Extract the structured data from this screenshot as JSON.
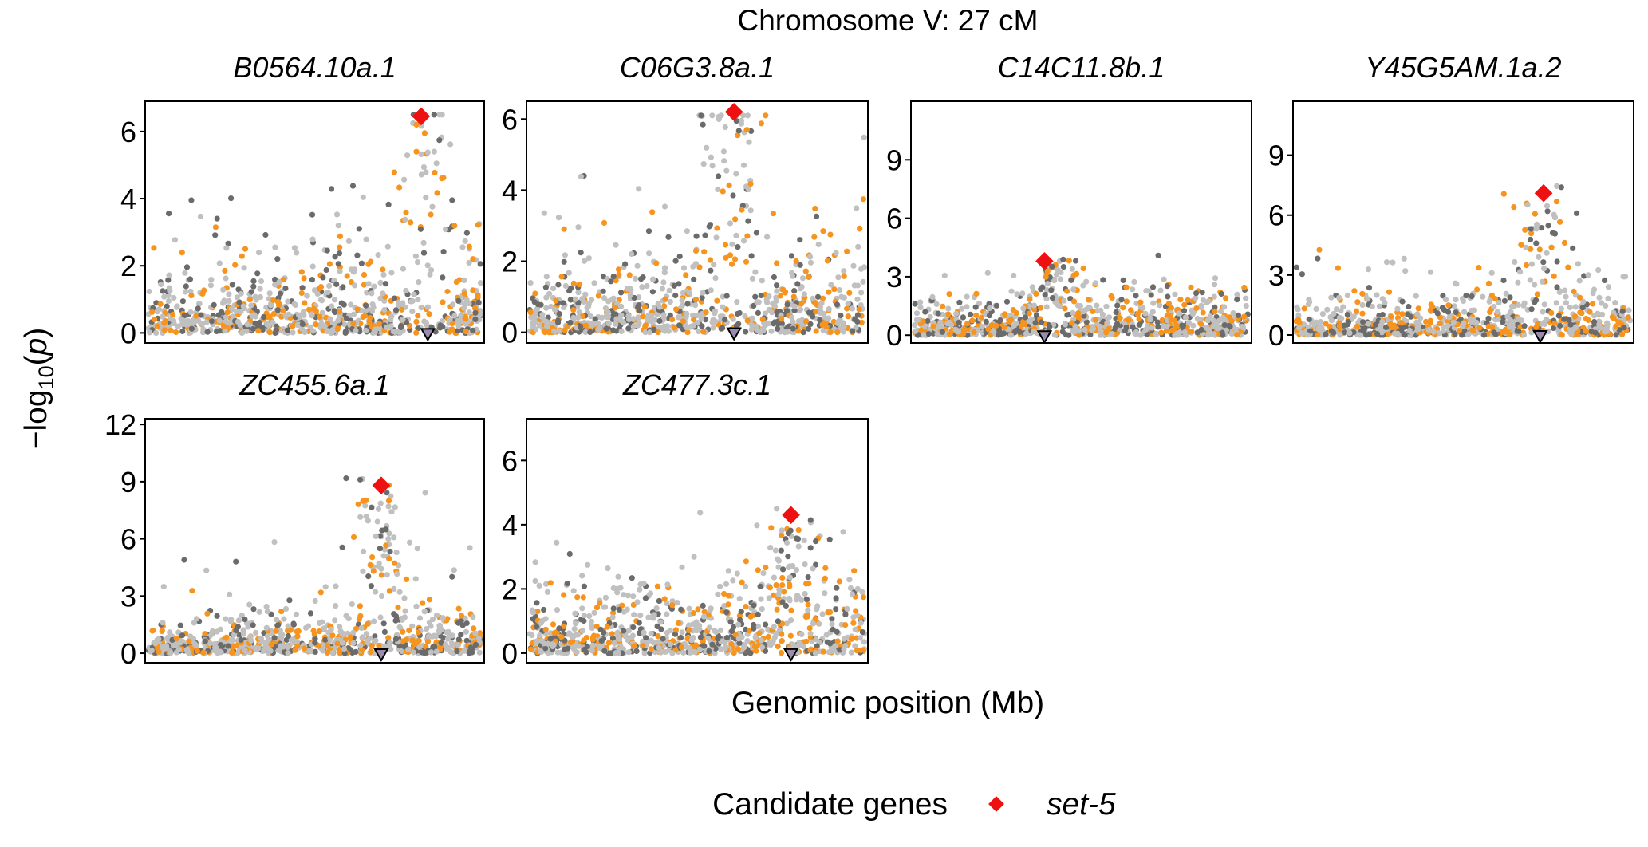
{
  "figure": {
    "title": "Chromosome V: 27 cM",
    "xlabel": "Genomic position (Mb)",
    "ylabel_prefix": "−log",
    "ylabel_sub": "10",
    "ylabel_open": "(",
    "ylabel_var": "p",
    "ylabel_close": ")",
    "legend_title": "Candidate genes",
    "legend_label": "set-5"
  },
  "colors": {
    "background_points": "#c0c0c0",
    "dark_points": "#6b6b6b",
    "highlight_points": "#f7941d",
    "candidate": "#ee1111",
    "marker_fill": "#9a8cae",
    "axis": "#000000"
  },
  "chart_data": [
    {
      "type": "scatter",
      "title": "B0564.10a.1",
      "ylim": [
        -0.3,
        6.9
      ],
      "yticks": [
        "0",
        "2",
        "4",
        "6"
      ],
      "ytick_values": [
        0,
        2,
        4,
        6
      ],
      "peak_position": 0.84,
      "marker_position": 0.84,
      "candidate": {
        "name": "set-5",
        "x": 0.82,
        "y": 6.45
      },
      "seed": 11
    },
    {
      "type": "scatter",
      "title": "C06G3.8a.1",
      "ylim": [
        -0.3,
        6.5
      ],
      "yticks": [
        "0",
        "2",
        "4",
        "6"
      ],
      "ytick_values": [
        0,
        2,
        4,
        6
      ],
      "peak_position": 0.6,
      "marker_position": 0.61,
      "candidate": {
        "name": "set-5",
        "x": 0.61,
        "y": 6.2
      },
      "seed": 23
    },
    {
      "type": "scatter",
      "title": "C14C11.8b.1",
      "ylim": [
        -0.4,
        12.0
      ],
      "yticks": [
        "0",
        "3",
        "6",
        "9"
      ],
      "ytick_values": [
        0,
        3,
        6,
        9
      ],
      "peak_position": 0.42,
      "marker_position": 0.39,
      "candidate": {
        "name": "set-5",
        "x": 0.39,
        "y": 3.8
      },
      "seed": 37
    },
    {
      "type": "scatter",
      "title": "Y45G5AM.1a.2",
      "ylim": [
        -0.4,
        11.7
      ],
      "yticks": [
        "0",
        "3",
        "6",
        "9"
      ],
      "ytick_values": [
        0,
        3,
        6,
        9
      ],
      "peak_position": 0.73,
      "marker_position": 0.73,
      "candidate": {
        "name": "set-5",
        "x": 0.74,
        "y": 7.1
      },
      "seed": 41
    },
    {
      "type": "scatter",
      "title": "ZC455.6a.1",
      "ylim": [
        -0.5,
        12.3
      ],
      "yticks": [
        "0",
        "3",
        "6",
        "9",
        "12"
      ],
      "ytick_values": [
        0,
        3,
        6,
        9,
        12
      ],
      "peak_position": 0.7,
      "marker_position": 0.7,
      "candidate": {
        "name": "set-5",
        "x": 0.7,
        "y": 8.8
      },
      "seed": 53
    },
    {
      "type": "scatter",
      "title": "ZC477.3c.1",
      "ylim": [
        -0.3,
        7.3
      ],
      "yticks": [
        "0",
        "2",
        "4",
        "6"
      ],
      "ytick_values": [
        0,
        2,
        4,
        6
      ],
      "peak_position": 0.78,
      "marker_position": 0.78,
      "candidate": {
        "name": "set-5",
        "x": 0.78,
        "y": 4.3
      },
      "seed": 67
    }
  ]
}
